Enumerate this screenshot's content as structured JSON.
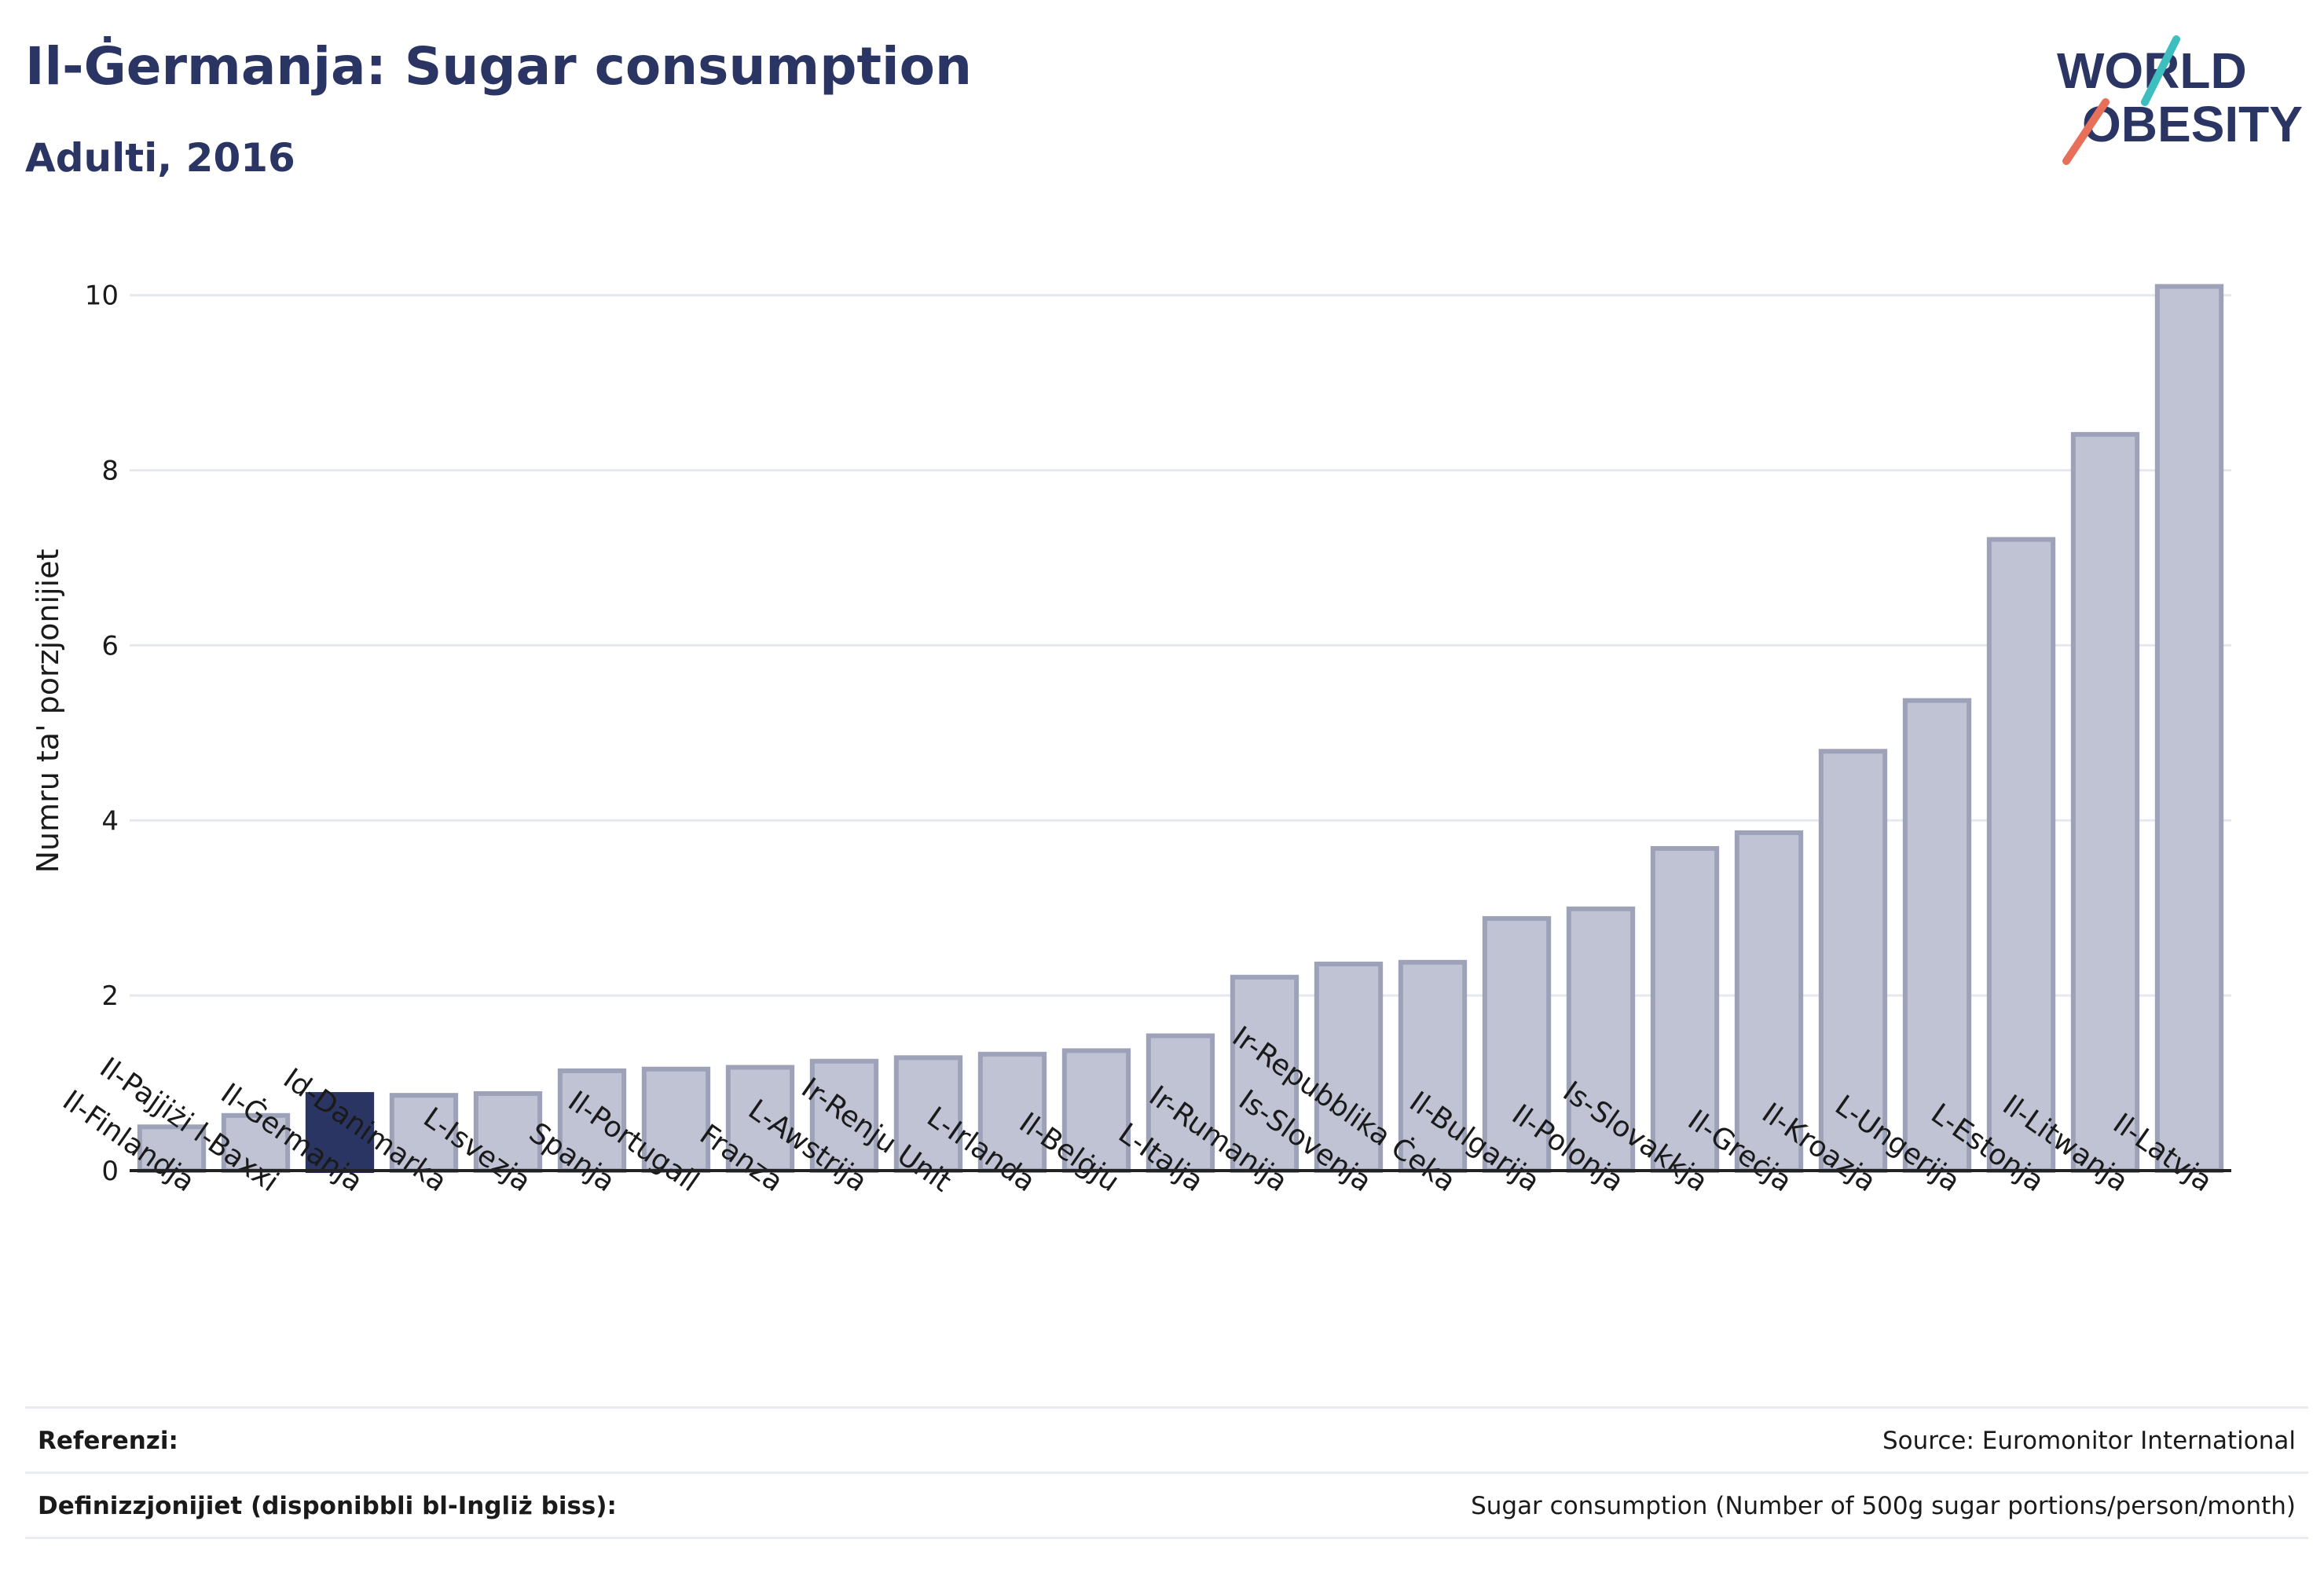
{
  "header": {
    "title": "Il-Ġermanja: Sugar consumption",
    "subtitle": "Adulti, 2016",
    "logo_line1": "WORLD",
    "logo_line2": "OBESITY"
  },
  "footer": {
    "references_label": "Referenzi:",
    "references_value": "Source: Euromonitor International",
    "definitions_label": "Definizzjonijiet (disponibbli bl-Ingliż biss):",
    "definitions_value": "Sugar consumption (Number of 500g sugar portions/person/month)"
  },
  "colors": {
    "title": "#2b3563",
    "highlight_bar": "#2b3563",
    "bar_fill": "#bfc3d3",
    "bar_stroke": "#9da2b9",
    "logo_teal": "#3dbfbf",
    "logo_coral": "#e8705a"
  },
  "chart_data": {
    "type": "bar",
    "ylabel": "Numru ta' porzjonijiet",
    "xlabel": "",
    "ylim": [
      0,
      10.5
    ],
    "yticks": [
      0,
      2,
      4,
      6,
      8,
      10
    ],
    "grid": true,
    "highlight": "Il-Ġermanja",
    "categories": [
      "Il-Finlandja",
      "Il-Pajjiżi l-Baxxi",
      "Il-Ġermanja",
      "Id-Danimarka",
      "L-Isvezja",
      "Spanja",
      "Il-Portugall",
      "Franza",
      "L-Awstrija",
      "Ir-Renju Unit",
      "L-Irlanda",
      "Il-Belġju",
      "L-Italja",
      "Ir-Rumanija",
      "Is-Slovenja",
      "Ir-Repubblika Ċeka",
      "Il-Bulgarija",
      "Il-Polonja",
      "Is-Slovakkja",
      "Il-Greċja",
      "Il-Kroazja",
      "L-Ungerija",
      "L-Estonja",
      "Il-Litwanja",
      "Il-Latvja"
    ],
    "values": [
      0.5,
      0.63,
      0.87,
      0.86,
      0.88,
      1.14,
      1.16,
      1.18,
      1.25,
      1.29,
      1.33,
      1.37,
      1.54,
      2.21,
      2.36,
      2.38,
      2.88,
      2.99,
      3.68,
      3.86,
      4.79,
      5.37,
      7.21,
      8.41,
      10.1
    ]
  }
}
